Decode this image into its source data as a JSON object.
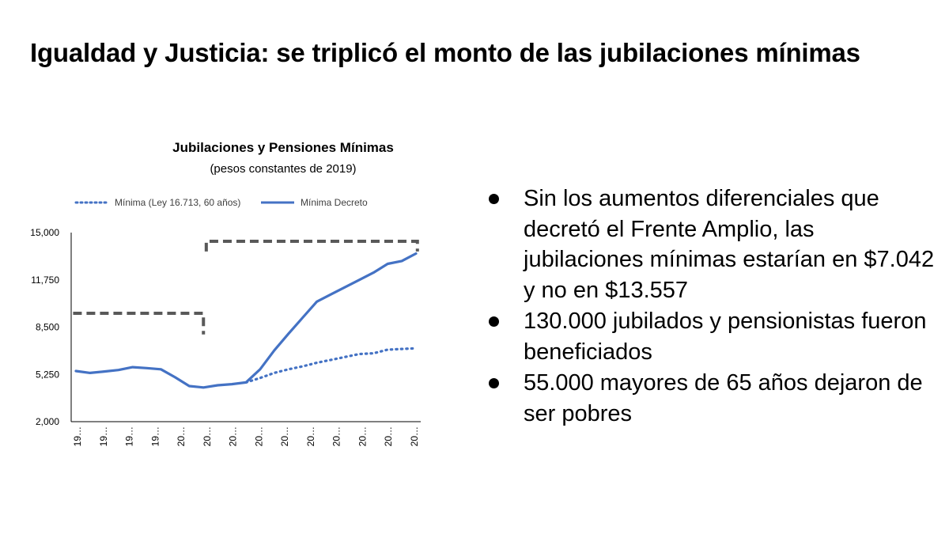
{
  "slide": {
    "title": "Igualdad y Justicia: se triplicó el monto de las jubilaciones mínimas",
    "bullets": [
      "Sin los aumentos diferenciales que decretó el Frente Amplio, las jubilaciones mínimas estarían en $7.042 y no en $13.557",
      "130.000 jubilados y pensionistas fueron beneficiados",
      "55.000 mayores de 65 años dejaron de ser pobres"
    ]
  },
  "chart_data": {
    "type": "line",
    "title": "Jubilaciones y Pensiones Mínimas",
    "subtitle": "(pesos constantes de 2019)",
    "xlabel": "",
    "ylabel": "",
    "ylim": [
      2000,
      15000
    ],
    "yticks": [
      "15,000",
      "11,750",
      "8,500",
      "5,250",
      "2,000"
    ],
    "ytick_values": [
      15000,
      11750,
      8500,
      5250,
      2000
    ],
    "xtick_labels": [
      "19…",
      "19…",
      "19…",
      "19…",
      "20…",
      "20…",
      "20…",
      "20…",
      "20…",
      "20…",
      "20…",
      "20…",
      "20…",
      "20…"
    ],
    "legend_position": "top",
    "grid": false,
    "series": [
      {
        "name": "Mínima (Ley 16.713, 60 años)",
        "style": "dotted",
        "color": "#4472c4",
        "x_index": [
          12,
          13,
          14,
          15,
          16,
          17,
          18,
          19,
          20,
          21,
          22,
          23,
          24
        ],
        "values": [
          4700,
          5000,
          5350,
          5600,
          5800,
          6050,
          6250,
          6450,
          6650,
          6700,
          6950,
          7000,
          7042
        ]
      },
      {
        "name": "Mínima Decreto",
        "style": "solid",
        "color": "#4472c4",
        "x_index": [
          0,
          1,
          2,
          3,
          4,
          5,
          6,
          7,
          8,
          9,
          10,
          11,
          12,
          13,
          14,
          15,
          16,
          17,
          18,
          19,
          20,
          21,
          22,
          23,
          24
        ],
        "values": [
          5480,
          5350,
          5450,
          5550,
          5750,
          5680,
          5600,
          5050,
          4450,
          4350,
          4500,
          4580,
          4700,
          5600,
          6900,
          8050,
          9150,
          10250,
          10750,
          11250,
          11750,
          12250,
          12850,
          13050,
          13557
        ]
      }
    ],
    "annotations": [
      {
        "type": "bracket",
        "style": "dashed",
        "from_index": -0.2,
        "to_index": 9,
        "value_top": 9450,
        "value_bottom": 8000
      },
      {
        "type": "bracket",
        "style": "dashed",
        "from_index": 9.2,
        "to_index": 24.1,
        "value_top": 14400,
        "value_bottom": 13700
      }
    ]
  }
}
